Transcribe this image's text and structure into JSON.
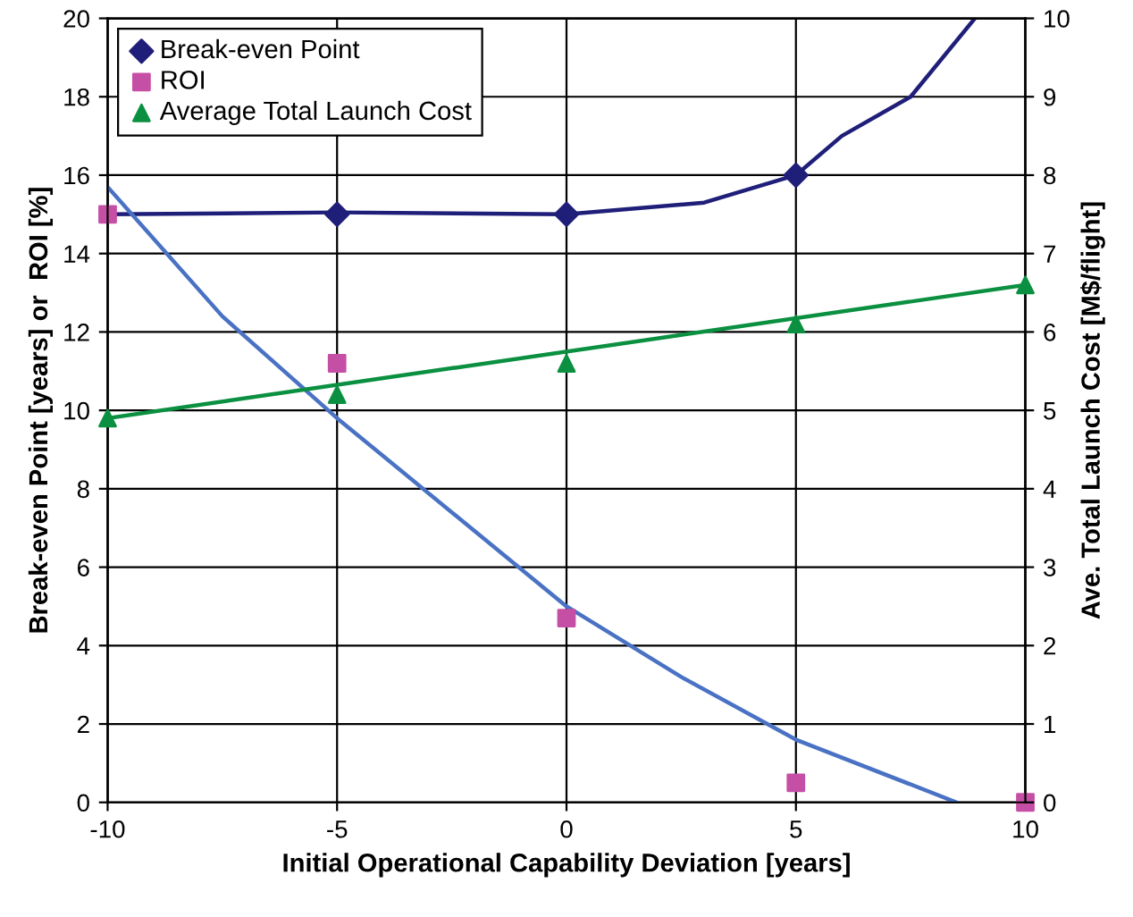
{
  "chart_data": {
    "type": "scatter",
    "xlabel": "Initial Operational Capability Deviation [years]",
    "ylabel": "Break-even Point [years] or  ROI [%]",
    "y2label": "Ave. Total Launch Cost [M$/flight]",
    "xlim": [
      -10,
      10
    ],
    "xticks": [
      -10,
      -5,
      0,
      5,
      10
    ],
    "ylim": [
      0,
      20
    ],
    "yticks": [
      0,
      2,
      4,
      6,
      8,
      10,
      12,
      14,
      16,
      18,
      20
    ],
    "y2lim": [
      0,
      10
    ],
    "y2ticks": [
      0,
      1,
      2,
      3,
      4,
      5,
      6,
      7,
      8,
      9,
      10
    ],
    "grid": true,
    "legend": "top left",
    "series": [
      {
        "name": "Break-even Point",
        "marker": "diamond",
        "color": "#1f1f7a",
        "x": [
          -5,
          0,
          5
        ],
        "values": [
          15,
          15,
          16
        ]
      },
      {
        "name": "ROI",
        "marker": "square",
        "color": "#c64fa6",
        "x": [
          -10,
          -5,
          0,
          5,
          10
        ],
        "values": [
          15,
          11.2,
          4.7,
          0.5,
          0
        ]
      },
      {
        "name": "Average Total Launch Cost",
        "marker": "triangle",
        "color": "#0a9040",
        "axis": "y2",
        "x": [
          -10,
          -5,
          0,
          5,
          10
        ],
        "values": [
          4.9,
          5.2,
          5.6,
          6.1,
          6.6
        ]
      },
      {
        "type": "line",
        "color": "#1f1f7a",
        "x": [
          -10,
          -5,
          0,
          3,
          5,
          6,
          7.5,
          8.9
        ],
        "values": [
          15,
          15.05,
          15,
          15.3,
          16,
          17,
          18,
          20
        ]
      },
      {
        "type": "line",
        "color": "#4a72c4",
        "x": [
          -10,
          -7.5,
          -5,
          0,
          2.5,
          5,
          8.5
        ],
        "values": [
          15.7,
          12.4,
          9.8,
          5.0,
          3.2,
          1.6,
          0
        ]
      },
      {
        "type": "line",
        "color": "#0a9040",
        "axis": "y2",
        "x": [
          -10,
          10
        ],
        "values": [
          4.9,
          6.6
        ]
      }
    ]
  }
}
